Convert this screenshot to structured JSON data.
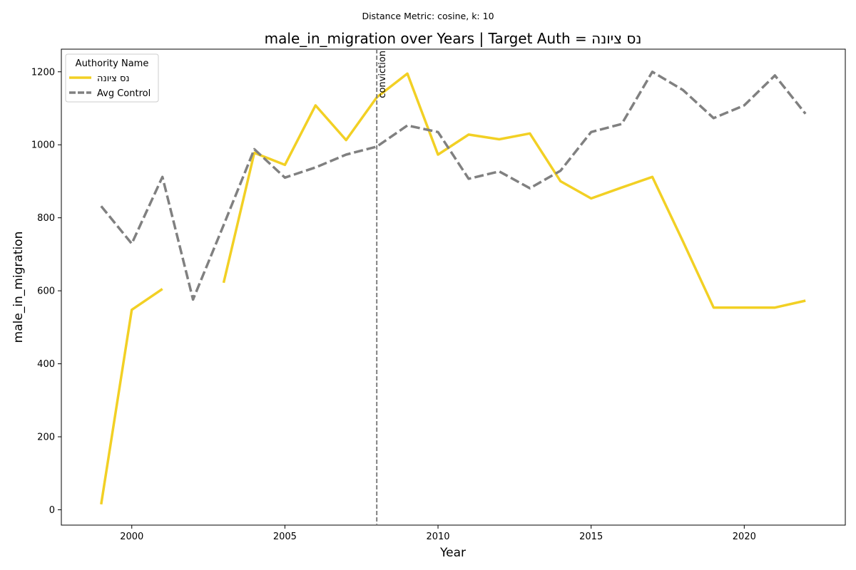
{
  "chart_data": {
    "type": "line",
    "suptitle": "Distance Metric: cosine, k: 10",
    "title": "male_in_migration over Years | Target Auth = נס ציונה",
    "xlabel": "Year",
    "ylabel": "male_in_migration",
    "xlim": [
      1997.7,
      2023.3
    ],
    "ylim": [
      -42,
      1262
    ],
    "xticks": [
      2000,
      2005,
      2010,
      2015,
      2020
    ],
    "yticks": [
      0,
      200,
      400,
      600,
      800,
      1000,
      1200
    ],
    "grid": false,
    "legend": {
      "title": "Authority Name",
      "placement": "top-left"
    },
    "annotation": {
      "label": "conviction",
      "x": 2008,
      "style": "dashed vertical line",
      "color": "#808080"
    },
    "series": [
      {
        "name": "נס ציונה",
        "color": "#f2d024",
        "dash": "solid",
        "x": [
          1999,
          2000,
          2001,
          2002,
          2003,
          2004,
          2005,
          2006,
          2007,
          2008,
          2009,
          2010,
          2011,
          2012,
          2013,
          2014,
          2015,
          2016,
          2017,
          2018,
          2019,
          2020,
          2021,
          2022
        ],
        "values": [
          15,
          548,
          605,
          null,
          622,
          978,
          945,
          1108,
          1013,
          1130,
          1195,
          973,
          1028,
          1015,
          1031,
          900,
          853,
          883,
          912,
          735,
          554,
          554,
          554,
          573
        ]
      },
      {
        "name": "Avg Control",
        "color": "#808080",
        "dash": "dashed",
        "x": [
          1999,
          2000,
          2001,
          2002,
          2003,
          2004,
          2005,
          2006,
          2007,
          2008,
          2009,
          2010,
          2011,
          2012,
          2013,
          2014,
          2015,
          2016,
          2017,
          2018,
          2019,
          2020,
          2021,
          2022
        ],
        "values": [
          832,
          729,
          912,
          576,
          780,
          988,
          910,
          938,
          973,
          995,
          1053,
          1035,
          907,
          927,
          881,
          929,
          1035,
          1057,
          1200,
          1150,
          1073,
          1108,
          1190,
          1085
        ]
      }
    ]
  }
}
